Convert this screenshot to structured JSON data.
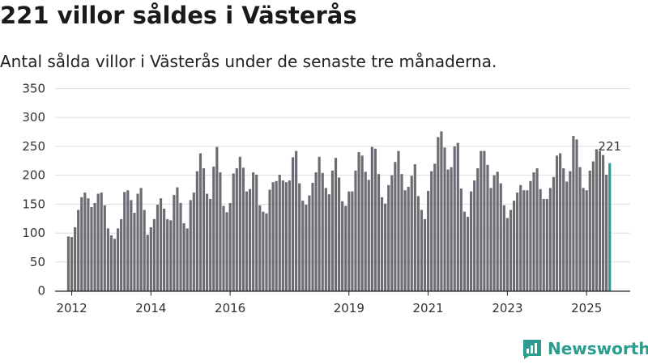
{
  "header": {
    "title": "221 villor såldes i Västerås",
    "subtitle": "Antal sålda villor i Västerås under de senaste tre månaderna."
  },
  "branding": {
    "name": "Newsworthy"
  },
  "colors": {
    "bar": "#6d6c73",
    "highlight": "#2a9d8f",
    "grid": "#dddddd",
    "axis": "#222222"
  },
  "chart_data": {
    "type": "bar",
    "title": "Antal sålda villor i Västerås",
    "xlabel": "",
    "ylabel": "",
    "ylim": [
      0,
      350
    ],
    "yticks": [
      0,
      50,
      100,
      150,
      200,
      250,
      300,
      350
    ],
    "xlim": [
      2011.58,
      2026.1
    ],
    "xticks": [
      {
        "x": 2012,
        "label": "2012"
      },
      {
        "x": 2014,
        "label": "2014"
      },
      {
        "x": 2016,
        "label": "2016"
      },
      {
        "x": 2019,
        "label": "2019"
      },
      {
        "x": 2021,
        "label": "2021"
      },
      {
        "x": 2023,
        "label": "2023"
      },
      {
        "x": 2025,
        "label": "2025"
      }
    ],
    "first_period": [
      2011,
      12
    ],
    "values": [
      94,
      93,
      110,
      140,
      162,
      170,
      160,
      145,
      152,
      168,
      170,
      148,
      108,
      96,
      90,
      108,
      124,
      171,
      174,
      157,
      135,
      168,
      178,
      140,
      97,
      110,
      124,
      149,
      160,
      142,
      124,
      122,
      166,
      179,
      152,
      117,
      108,
      157,
      170,
      207,
      238,
      212,
      168,
      159,
      215,
      249,
      205,
      147,
      136,
      152,
      203,
      212,
      232,
      213,
      172,
      176,
      205,
      201,
      148,
      137,
      134,
      175,
      188,
      190,
      201,
      191,
      188,
      191,
      231,
      242,
      186,
      156,
      149,
      165,
      187,
      205,
      232,
      204,
      178,
      167,
      208,
      230,
      196,
      155,
      147,
      172,
      172,
      208,
      240,
      234,
      206,
      192,
      249,
      246,
      202,
      162,
      151,
      183,
      200,
      223,
      242,
      202,
      174,
      180,
      199,
      219,
      164,
      140,
      124,
      173,
      207,
      220,
      266,
      276,
      248,
      210,
      214,
      250,
      256,
      177,
      137,
      128,
      172,
      191,
      212,
      242,
      242,
      218,
      178,
      200,
      206,
      186,
      148,
      126,
      140,
      156,
      170,
      183,
      174,
      174,
      190,
      205,
      212,
      176,
      159,
      159,
      178,
      197,
      234,
      238,
      212,
      189,
      207,
      268,
      262,
      214,
      178,
      174,
      208,
      224,
      245,
      242,
      235,
      201,
      221
    ],
    "last_value_label": "221"
  }
}
